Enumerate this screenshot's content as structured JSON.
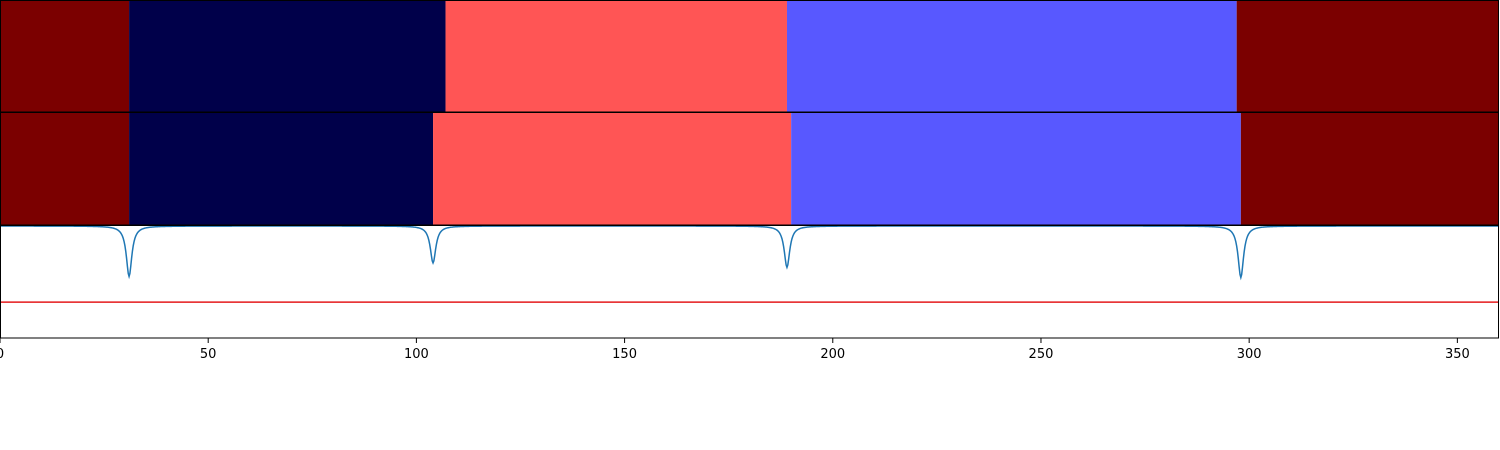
{
  "chart_data": [
    {
      "type": "segment-bar",
      "xlim": [
        0,
        360
      ],
      "segments": [
        {
          "start": 0,
          "end": 31,
          "color": "#7b0000"
        },
        {
          "start": 31,
          "end": 107,
          "color": "#00004a"
        },
        {
          "start": 107,
          "end": 189,
          "color": "#ff5555"
        },
        {
          "start": 189,
          "end": 297,
          "color": "#5858ff"
        },
        {
          "start": 297,
          "end": 360,
          "color": "#7b0000"
        }
      ]
    },
    {
      "type": "segment-bar",
      "xlim": [
        0,
        360
      ],
      "segments": [
        {
          "start": 0,
          "end": 31,
          "color": "#7b0000"
        },
        {
          "start": 31,
          "end": 104,
          "color": "#00004a"
        },
        {
          "start": 104,
          "end": 190,
          "color": "#ff5555"
        },
        {
          "start": 190,
          "end": 298,
          "color": "#5858ff"
        },
        {
          "start": 298,
          "end": 360,
          "color": "#7b0000"
        }
      ]
    },
    {
      "type": "line",
      "xlim": [
        0,
        360
      ],
      "ylim": [
        0,
        1
      ],
      "x_ticks": [
        0,
        50,
        100,
        150,
        200,
        250,
        300,
        350
      ],
      "grid": false,
      "series": [
        {
          "color": "#1f77b4",
          "kind": "dips",
          "dips": [
            {
              "x": 31,
              "depth": 0.45
            },
            {
              "x": 104,
              "depth": 0.33
            },
            {
              "x": 189,
              "depth": 0.37
            },
            {
              "x": 298,
              "depth": 0.46
            }
          ]
        },
        {
          "color": "#e41a1c",
          "kind": "constant",
          "y": 0.32
        }
      ]
    }
  ]
}
